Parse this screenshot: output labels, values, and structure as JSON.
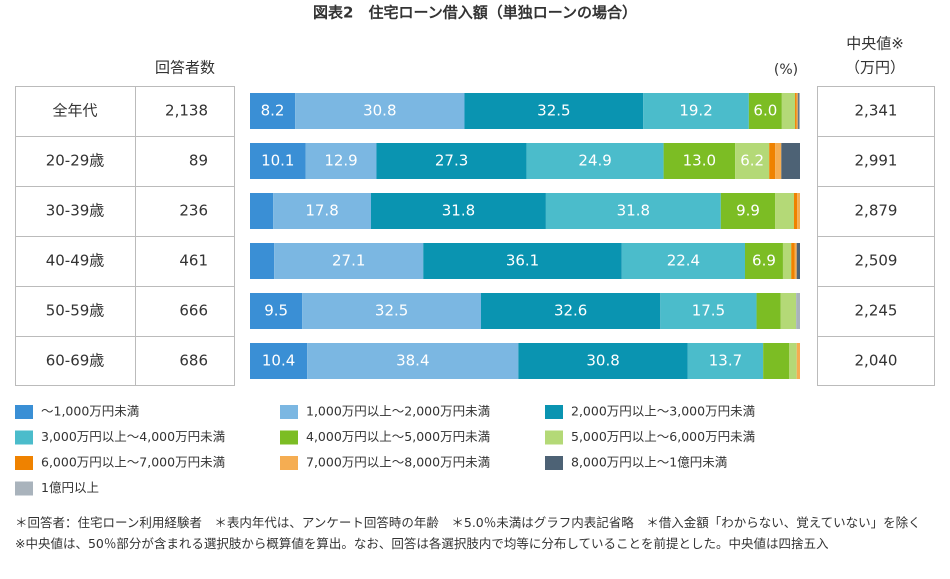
{
  "chart_data": {
    "type": "stacked-bar",
    "title": "図表2　住宅ローン借入額（単独ローンの場合）",
    "unit": "(%)",
    "categories": [
      "全年代",
      "20-29歳",
      "30-39歳",
      "40-49歳",
      "50-59歳",
      "60-69歳"
    ],
    "respondents": {
      "header": "回答者数",
      "values": [
        2138,
        89,
        236,
        461,
        666,
        686
      ],
      "value_labels": [
        "2,138",
        "89",
        "236",
        "461",
        "666",
        "686"
      ]
    },
    "median": {
      "header": "中央値※",
      "unit": "（万円）",
      "values": [
        2341,
        2991,
        2879,
        2509,
        2245,
        2040
      ],
      "value_labels": [
        "2,341",
        "2,991",
        "2,879",
        "2,509",
        "2,245",
        "2,040"
      ]
    },
    "xlim": [
      0,
      100
    ],
    "series": [
      {
        "name": "～1,000万円未満",
        "color": "#3a8fd5",
        "values": [
          8.2,
          10.1,
          4.2,
          4.4,
          9.5,
          10.4
        ],
        "value_labels": [
          "8.2",
          "10.1",
          null,
          null,
          "9.5",
          "10.4"
        ]
      },
      {
        "name": "1,000万円以上～2,000万円未満",
        "color": "#7bb7e2",
        "values": [
          30.8,
          12.9,
          17.8,
          27.1,
          32.5,
          38.4
        ],
        "value_labels": [
          "30.8",
          "12.9",
          "17.8",
          "27.1",
          "32.5",
          "38.4"
        ]
      },
      {
        "name": "2,000万円以上～3,000万円未満",
        "color": "#0a94b1",
        "values": [
          32.5,
          27.3,
          31.8,
          36.1,
          32.6,
          30.8
        ],
        "value_labels": [
          "32.5",
          "27.3",
          "31.8",
          "36.1",
          "32.6",
          "30.8"
        ]
      },
      {
        "name": "3,000万円以上～4,000万円未満",
        "color": "#4bbccb",
        "values": [
          19.2,
          24.9,
          31.8,
          22.4,
          17.5,
          13.7
        ],
        "value_labels": [
          "19.2",
          "24.9",
          "31.8",
          "22.4",
          "17.5",
          "13.7"
        ]
      },
      {
        "name": "4,000万円以上～5,000万円未満",
        "color": "#7cbd24",
        "values": [
          6.0,
          13.0,
          9.9,
          6.9,
          4.4,
          4.7
        ],
        "value_labels": [
          "6.0",
          "13.0",
          "9.9",
          "6.9",
          null,
          null
        ]
      },
      {
        "name": "5,000万円以上～6,000万円未満",
        "color": "#b4d977",
        "values": [
          2.4,
          6.2,
          3.4,
          1.5,
          2.8,
          1.4
        ],
        "value_labels": [
          null,
          "6.2",
          null,
          null,
          null,
          null
        ]
      },
      {
        "name": "6,000万円以上～7,000万円未満",
        "color": "#ef8200",
        "values": [
          0.3,
          1.1,
          0.6,
          0.6,
          0,
          0
        ],
        "value_labels": [
          null,
          null,
          null,
          null,
          null,
          null
        ]
      },
      {
        "name": "7,000万円以上～8,000万円未満",
        "color": "#f5ad52",
        "values": [
          0.2,
          1.1,
          0.5,
          0.4,
          0,
          0.6
        ],
        "value_labels": [
          null,
          null,
          null,
          null,
          null,
          null
        ]
      },
      {
        "name": "8,000万円以上～1億円未満",
        "color": "#4d6275",
        "values": [
          0.2,
          3.4,
          0,
          0.6,
          0,
          0
        ],
        "value_labels": [
          null,
          null,
          null,
          null,
          null,
          null
        ]
      },
      {
        "name": "1億円以上",
        "color": "#a9b3bc",
        "values": [
          0.2,
          0,
          0,
          0,
          0.7,
          0
        ],
        "value_labels": [
          null,
          null,
          null,
          null,
          null,
          null
        ]
      }
    ],
    "note": "＊回答者：住宅ローン利用経験者　＊表内年代は、アンケート回答時の年齢　＊5.0％未満はグラフ内表記省略　＊借入金額「わからない、覚えていない」を除く　※中央値は、50％部分が含まれる選択肢から概算値を算出。なお、回答は各選択肢内で均等に分布していることを前提とした。中央値は四捨五入"
  }
}
